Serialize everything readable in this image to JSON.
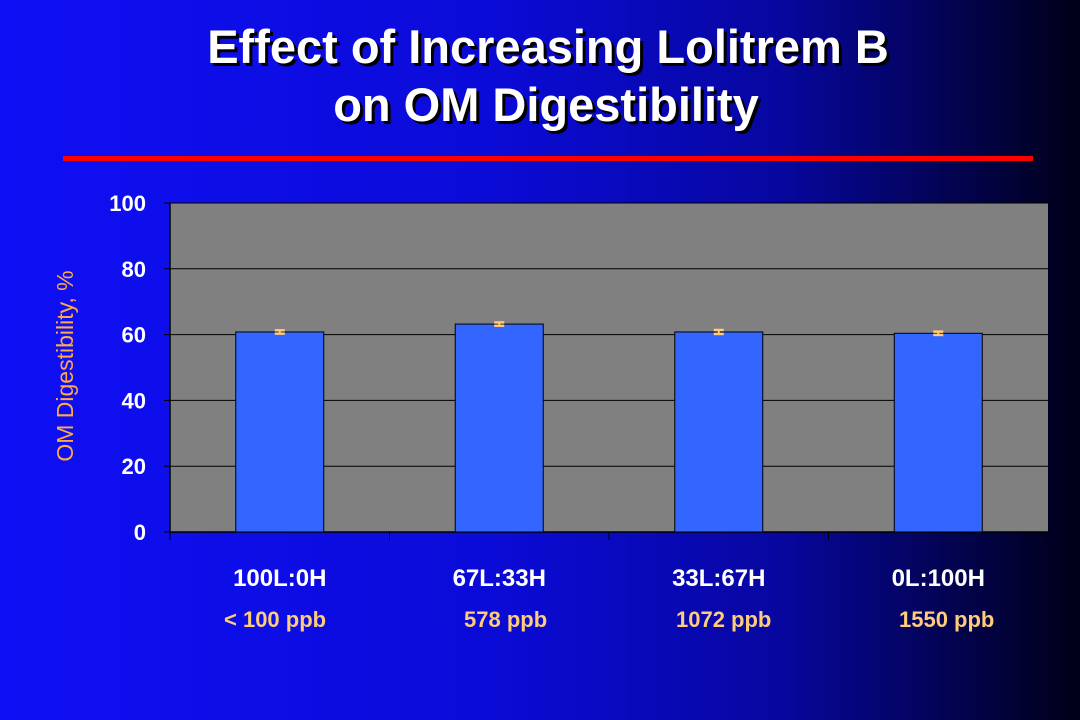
{
  "slide": {
    "title_line1": "Effect of Increasing Lolitrem B",
    "title_line2": "on OM Digestibility"
  },
  "colors": {
    "background": "#1010f0",
    "plot_area": "#808080",
    "bar": "#3366ff",
    "error_bar": "#ffcc77",
    "axis_title": "#ffaa44",
    "ppb_label": "#ffcc77",
    "rule": "#ff0000"
  },
  "ppb_labels": [
    "< 100 ppb",
    "578 ppb",
    "1072 ppb",
    "1550 ppb"
  ],
  "chart_data": {
    "type": "bar",
    "categories": [
      "100L:0H",
      "67L:33H",
      "33L:67H",
      "0L:100H"
    ],
    "values": [
      60.8,
      63.2,
      60.8,
      60.4
    ],
    "errors": [
      0.5,
      0.5,
      0.6,
      0.5
    ],
    "title": "",
    "xlabel": "",
    "ylabel": "OM Digestibility, %",
    "ylim": [
      0,
      100
    ],
    "yticks": [
      0,
      20,
      40,
      60,
      80,
      100
    ],
    "grid": true
  }
}
